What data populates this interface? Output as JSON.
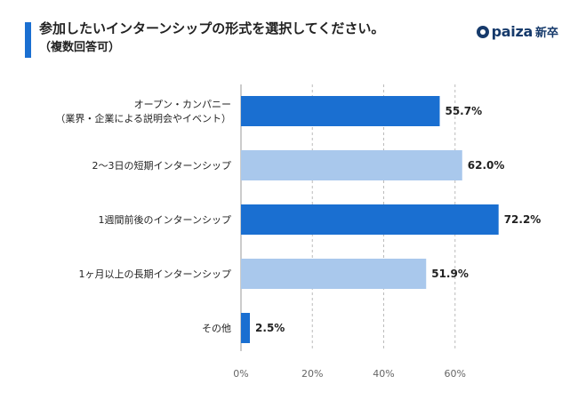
{
  "header": {
    "title": "参加したいインターンシップの形式を選択してください。",
    "subtitle": "（複数回答可）",
    "brand_name": "paiza",
    "brand_suffix": "新卒"
  },
  "colors": {
    "accent": "#1a6fd1",
    "bar_dark": "#1a6fd1",
    "bar_light": "#a9c8ec",
    "grid": "#bbbbbb",
    "brand": "#163a6b"
  },
  "chart_data": {
    "type": "bar",
    "orientation": "horizontal",
    "categories": [
      [
        "オープン・カンパニー",
        "（業界・企業による説明会やイベント）"
      ],
      [
        "2〜3日の短期インターンシップ"
      ],
      [
        "1週間前後のインターンシップ"
      ],
      [
        "1ヶ月以上の長期インターンシップ"
      ],
      [
        "その他"
      ]
    ],
    "values": [
      55.7,
      62.0,
      72.2,
      51.9,
      2.5
    ],
    "value_labels": [
      "55.7%",
      "62.0%",
      "72.2%",
      "51.9%",
      "2.5%"
    ],
    "bar_colors": [
      "#1a6fd1",
      "#a9c8ec",
      "#1a6fd1",
      "#a9c8ec",
      "#1a6fd1"
    ],
    "xlim": [
      0,
      80
    ],
    "xticks": [
      0,
      20,
      40,
      60
    ],
    "xtick_labels": [
      "0%",
      "20%",
      "40%",
      "60%"
    ],
    "grid": true
  }
}
